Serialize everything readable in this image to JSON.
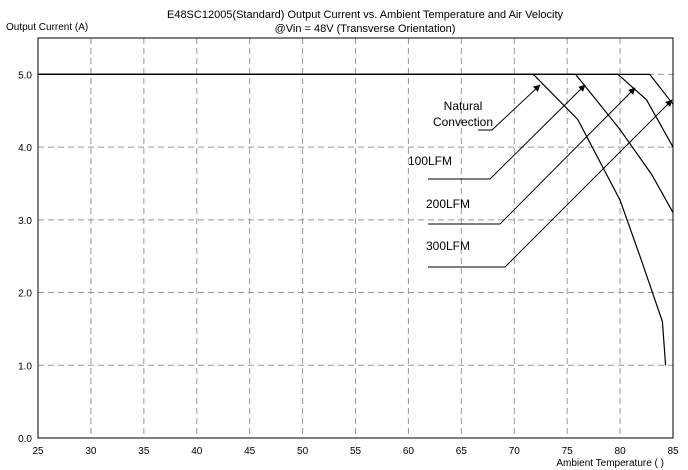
{
  "chart_data": {
    "type": "line",
    "title": "E48SC12005(Standard)  Output Current vs. Ambient Temperature and Air Velocity",
    "subtitle": "@Vin = 48V (Transverse Orientation)",
    "y_label": "Output Current (A)",
    "x_label": "Ambient Temperature ( )",
    "xlim": [
      25,
      85
    ],
    "xticks": [
      25,
      30,
      35,
      40,
      45,
      50,
      55,
      60,
      65,
      70,
      75,
      80,
      85
    ],
    "ylim": [
      0,
      5.5
    ],
    "yticks": [
      {
        "value": 0,
        "label": "0.0"
      },
      {
        "value": 1,
        "label": "1.0"
      },
      {
        "value": 2,
        "label": "2.0"
      },
      {
        "value": 3,
        "label": "3.0"
      },
      {
        "value": 4,
        "label": "4.0"
      },
      {
        "value": 5,
        "label": "5.0"
      }
    ],
    "grid": true,
    "series": [
      {
        "name": "Natural Convection",
        "color": "#000000",
        "x": [
          25,
          71.8,
          76,
          80,
          82,
          84,
          84.3
        ],
        "values": [
          5.0,
          5.0,
          4.38,
          3.27,
          2.45,
          1.6,
          1.0
        ]
      },
      {
        "name": "100LFM",
        "color": "#000000",
        "x": [
          25,
          75.8,
          80,
          83,
          85
        ],
        "values": [
          5.0,
          5.0,
          4.24,
          3.62,
          3.1
        ]
      },
      {
        "name": "200LFM",
        "color": "#000000",
        "x": [
          25,
          79.8,
          82.5,
          85
        ],
        "values": [
          5.0,
          5.0,
          4.65,
          4.0
        ]
      },
      {
        "name": "300LFM",
        "color": "#000000",
        "x": [
          25,
          82.8,
          85
        ],
        "values": [
          5.0,
          5.0,
          4.59
        ]
      }
    ]
  }
}
